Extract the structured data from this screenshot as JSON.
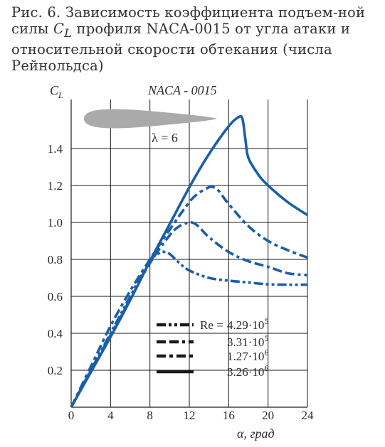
{
  "caption": {
    "lead": "Рис. 6. Зависимость коэффициента подъем-ной силы ",
    "symbol": "C",
    "symbol_sub": "L",
    "rest": " профиля NACA-0015 от угла атаки и относительной скорости обтекания (числа Рейнольдса)"
  },
  "chart_data": {
    "type": "line",
    "title": "NACA - 0015",
    "ylabel": "C",
    "ylabel_sub": "L",
    "xlabel": "α, град",
    "annotation": "λ = 6",
    "legend_title": "Re =",
    "xlim": [
      0,
      24
    ],
    "ylim": [
      0,
      1.7
    ],
    "xticks": [
      0,
      4,
      8,
      12,
      16,
      20,
      24
    ],
    "yticks": [
      0.2,
      0.4,
      0.6,
      0.8,
      1.0,
      1.2,
      1.4
    ],
    "x_tick_labels": [
      "0",
      "4",
      "8",
      "12",
      "16",
      "20",
      "24"
    ],
    "y_tick_labels": [
      "0.2",
      "0.4",
      "0.6",
      "0.8",
      "1.0",
      "1.2",
      "1.4"
    ],
    "grid": true,
    "legend_position": "bottom-center",
    "series": [
      {
        "name": "4.29·10",
        "exp": "5",
        "dash": "dash-dot-dot",
        "color": "#1a5ea8",
        "x": [
          0,
          2,
          4,
          6,
          8,
          9,
          9.5,
          10,
          11,
          12,
          14,
          16,
          18,
          20,
          22,
          24
        ],
        "y": [
          0,
          0.2,
          0.4,
          0.6,
          0.79,
          0.835,
          0.84,
          0.83,
          0.78,
          0.74,
          0.7,
          0.685,
          0.675,
          0.665,
          0.663,
          0.663
        ]
      },
      {
        "name": "3.31·10",
        "exp": "5",
        "dash": "dash-dash-dot",
        "color": "#1a5ea8",
        "x": [
          0,
          2,
          4,
          6,
          8,
          10,
          11,
          12,
          12.5,
          13,
          14,
          16,
          18,
          20,
          22,
          24
        ],
        "y": [
          0,
          0.195,
          0.39,
          0.585,
          0.78,
          0.93,
          0.98,
          1.0,
          0.995,
          0.975,
          0.92,
          0.84,
          0.79,
          0.76,
          0.725,
          0.715
        ]
      },
      {
        "name": "1.27·10",
        "exp": "6",
        "dash": "dash-dot",
        "color": "#1a5ea8",
        "x": [
          0,
          2,
          4,
          6,
          8,
          10,
          12,
          13,
          14,
          14.5,
          15,
          16,
          18,
          20,
          22,
          24
        ],
        "y": [
          0,
          0.22,
          0.44,
          0.63,
          0.8,
          0.96,
          1.11,
          1.16,
          1.19,
          1.19,
          1.17,
          1.1,
          0.98,
          0.9,
          0.85,
          0.81
        ]
      },
      {
        "name": "3.26·10",
        "exp": "6",
        "dash": "solid",
        "color": "#1a5ea8",
        "x": [
          0,
          2,
          4,
          6,
          8,
          10,
          12,
          14,
          16,
          17,
          17.4,
          17.7,
          18,
          19,
          20,
          22,
          24
        ],
        "y": [
          0,
          0.19,
          0.38,
          0.58,
          0.79,
          0.99,
          1.19,
          1.37,
          1.52,
          1.57,
          1.56,
          1.45,
          1.35,
          1.26,
          1.2,
          1.11,
          1.04
        ]
      }
    ]
  }
}
